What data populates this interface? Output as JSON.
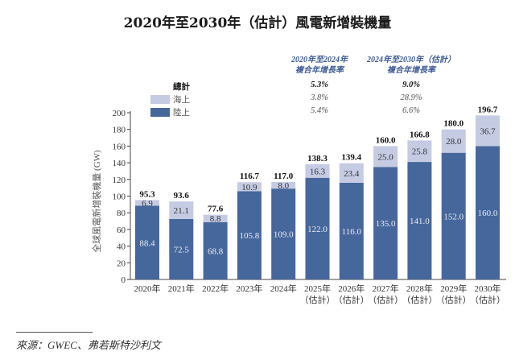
{
  "colors": {
    "onshore": "#46679b",
    "offshore": "#c5cbe3",
    "cagr_header": "#3c5a93"
  },
  "chart_data": {
    "type": "bar",
    "stacked": true,
    "title": "2020年至2030年（估計）風電新增裝機量",
    "ylabel": "全球風電新增裝機量 (GW)",
    "xlabel": "",
    "ylim": [
      0,
      200
    ],
    "yticks": [
      0,
      20,
      40,
      60,
      80,
      100,
      120,
      140,
      160,
      180,
      200
    ],
    "categories": [
      [
        "2020年",
        ""
      ],
      [
        "2021年",
        ""
      ],
      [
        "2022年",
        ""
      ],
      [
        "2023年",
        ""
      ],
      [
        "2024年",
        ""
      ],
      [
        "2025年",
        "（估計）"
      ],
      [
        "2026年",
        "（估計）"
      ],
      [
        "2027年",
        "（估計）"
      ],
      [
        "2028年",
        "（估計）"
      ],
      [
        "2029年",
        "（估計）"
      ],
      [
        "2030年",
        "（估計）"
      ]
    ],
    "series": [
      {
        "name": "陸上",
        "values": [
          88.4,
          72.5,
          68.8,
          105.8,
          109.0,
          122.0,
          116.0,
          135.0,
          141.0,
          152.0,
          160.0
        ],
        "labels": [
          "88.4",
          "72.5",
          "68.8",
          "105.8",
          "109.0",
          "122.0",
          "116.0",
          "135.0",
          "141.0",
          "152.0",
          "160.0"
        ]
      },
      {
        "name": "海上",
        "values": [
          6.9,
          21.1,
          8.8,
          10.9,
          8.0,
          16.3,
          23.4,
          25.0,
          25.8,
          28.0,
          36.7
        ],
        "labels": [
          "6.9",
          "21.1",
          "8.8",
          "10.9",
          "8.0",
          "16.3",
          "23.4",
          "25.0",
          "25.8",
          "28.0",
          "36.7"
        ]
      }
    ],
    "totals": [
      95.3,
      93.6,
      77.6,
      116.7,
      117.0,
      138.3,
      139.4,
      160.0,
      166.8,
      180.0,
      196.7
    ],
    "total_labels": [
      "95.3",
      "93.6",
      "77.6",
      "116.7",
      "117.0",
      "138.3",
      "139.4",
      "160.0",
      "166.8",
      "180.0",
      "196.7"
    ],
    "legend": {
      "rows": [
        {
          "label": "總計",
          "cagr1": "5.3%",
          "cagr2": "9.0%"
        },
        {
          "label": "海上",
          "cagr1": "3.8%",
          "cagr2": "28.9%"
        },
        {
          "label": "陸上",
          "cagr1": "5.4%",
          "cagr2": "6.6%"
        }
      ],
      "cagr1_header": [
        "2020年至2024年",
        "複合年增長率"
      ],
      "cagr2_header": [
        "2024年至2030年（估計）",
        "複合年增長率"
      ]
    }
  },
  "source": "來源：GWEC、弗若斯特沙利文"
}
